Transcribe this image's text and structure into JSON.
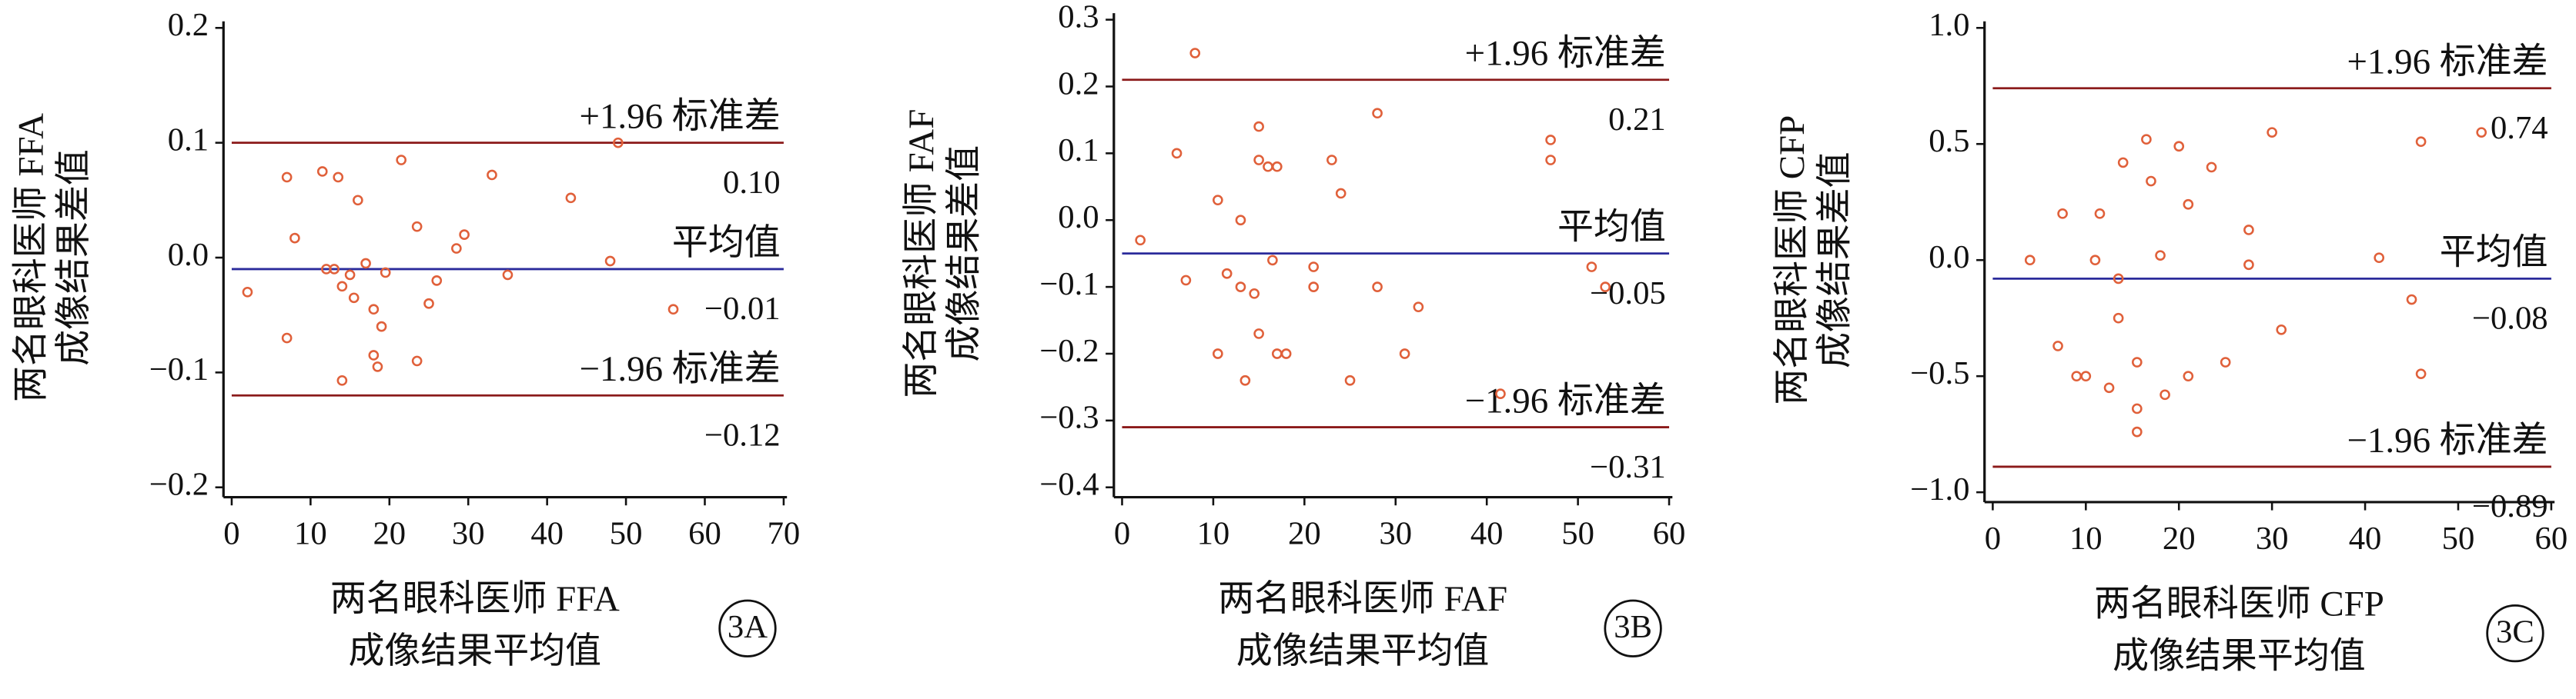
{
  "chart_data": [
    {
      "type": "scatter",
      "panel_label": "3A",
      "color": "#e0603a",
      "ylabel": [
        "两名眼科医师 FFA",
        "成像结果差值"
      ],
      "xlabel": [
        "两名眼科医师 FFA",
        "成像结果平均值"
      ],
      "xlim": [
        0,
        70
      ],
      "xticks": [
        0,
        10,
        20,
        30,
        40,
        50,
        60,
        70
      ],
      "ylim": [
        -0.2,
        0.2
      ],
      "yticks": [
        {
          "value": -0.2,
          "label": "−0.2"
        },
        {
          "value": -0.1,
          "label": "−0.1"
        },
        {
          "value": 0,
          "label": "0.0"
        },
        0.1,
        0.2
      ],
      "x": [
        2,
        7,
        7,
        8,
        11.5,
        12,
        13,
        13.5,
        14,
        14,
        15,
        15.5,
        16,
        17,
        18,
        18,
        18.5,
        19.5,
        19,
        21.5,
        23.5,
        23.5,
        25,
        26,
        28.5,
        29.5,
        33,
        35,
        43,
        48,
        49,
        56
      ],
      "values": [
        -0.03,
        0.07,
        -0.07,
        0.017,
        0.075,
        -0.01,
        -0.01,
        0.07,
        -0.025,
        -0.107,
        -0.015,
        -0.035,
        0.05,
        -0.005,
        -0.045,
        -0.085,
        -0.095,
        -0.013,
        -0.06,
        0.085,
        0.027,
        -0.09,
        -0.04,
        -0.02,
        0.008,
        0.02,
        0.072,
        -0.015,
        0.052,
        -0.003,
        0.1,
        -0.045
      ],
      "reference_lines": [
        {
          "label": "+1.96 标准差",
          "value": 0.1,
          "value_label": "0.10",
          "color": "#8b1a1a"
        },
        {
          "label": "平均值",
          "value": -0.01,
          "value_label": "−0.01",
          "color": "#2b2b9b"
        },
        {
          "label": "−1.96 标准差",
          "value": -0.12,
          "value_label": "−0.12",
          "color": "#8b1a1a"
        }
      ]
    },
    {
      "type": "scatter",
      "panel_label": "3B",
      "color": "#e0603a",
      "ylabel": [
        "两名眼科医师 FAF",
        "成像结果差值"
      ],
      "xlabel": [
        "两名眼科医师 FAF",
        "成像结果平均值"
      ],
      "xlim": [
        0,
        60
      ],
      "xticks": [
        0,
        10,
        20,
        30,
        40,
        50,
        60
      ],
      "ylim": [
        -0.4,
        0.3
      ],
      "yticks": [
        {
          "value": -0.4,
          "label": "−0.4"
        },
        {
          "value": -0.3,
          "label": "−0.3"
        },
        {
          "value": -0.2,
          "label": "−0.2"
        },
        {
          "value": -0.1,
          "label": "−0.1"
        },
        {
          "value": 0,
          "label": "0.0"
        },
        0.1,
        0.2,
        0.3
      ],
      "x": [
        2,
        6,
        7,
        8,
        10.5,
        10.5,
        11.5,
        13,
        13,
        13.5,
        14.5,
        15,
        15,
        15,
        16,
        16.5,
        17,
        18,
        17,
        21,
        21,
        23,
        24,
        25,
        28,
        28,
        31,
        32.5,
        41.5,
        47,
        47,
        51.5,
        53
      ],
      "values": [
        -0.03,
        0.1,
        -0.09,
        0.25,
        0.03,
        -0.2,
        -0.08,
        0.0,
        -0.1,
        -0.24,
        -0.11,
        -0.17,
        0.14,
        0.09,
        0.08,
        -0.06,
        -0.2,
        -0.2,
        0.08,
        -0.07,
        -0.1,
        0.09,
        0.04,
        -0.24,
        0.16,
        -0.1,
        -0.2,
        -0.13,
        -0.26,
        0.12,
        0.09,
        -0.07,
        -0.1
      ],
      "reference_lines": [
        {
          "label": "+1.96 标准差",
          "value": 0.21,
          "value_label": "0.21",
          "color": "#8b1a1a"
        },
        {
          "label": "平均值",
          "value": -0.05,
          "value_label": "−0.05",
          "color": "#2b2b9b"
        },
        {
          "label": "−1.96 标准差",
          "value": -0.31,
          "value_label": "−0.31",
          "color": "#8b1a1a"
        }
      ]
    },
    {
      "type": "scatter",
      "panel_label": "3C",
      "color": "#e0603a",
      "ylabel": [
        "两名眼科医师 CFP",
        "成像结果差值"
      ],
      "xlabel": [
        "两名眼科医师 CFP",
        "成像结果平均值"
      ],
      "xlim": [
        0,
        60
      ],
      "xticks": [
        0,
        10,
        20,
        30,
        40,
        50,
        60
      ],
      "ylim": [
        -1.0,
        1.0
      ],
      "yticks": [
        {
          "value": -1.0,
          "label": "−1.0"
        },
        {
          "value": -0.5,
          "label": "−0.5"
        },
        {
          "value": 0,
          "label": "0.0"
        },
        0.5,
        {
          "value": 1.0,
          "label": "1.0"
        }
      ],
      "x": [
        4,
        7,
        7.5,
        9,
        10,
        11,
        11.5,
        12.5,
        13.5,
        13.5,
        14,
        15.5,
        15.5,
        15.5,
        16.5,
        17,
        18,
        18.5,
        20,
        21,
        21,
        23.5,
        25,
        27.5,
        27.5,
        30,
        31,
        41.5,
        45,
        46,
        46,
        52.5
      ],
      "values": [
        0.0,
        -0.37,
        0.2,
        -0.5,
        -0.5,
        0.0,
        0.2,
        -0.55,
        -0.25,
        -0.08,
        0.42,
        -0.64,
        -0.74,
        -0.44,
        0.52,
        0.34,
        0.02,
        -0.58,
        0.49,
        0.24,
        -0.5,
        0.4,
        -0.44,
        0.13,
        -0.02,
        0.55,
        -0.3,
        0.01,
        -0.17,
        0.51,
        -0.49,
        0.55
      ],
      "reference_lines": [
        {
          "label": "+1.96 标准差",
          "value": 0.74,
          "value_label": "0.74",
          "color": "#8b1a1a"
        },
        {
          "label": "平均值",
          "value": -0.08,
          "value_label": "−0.08",
          "color": "#2b2b9b"
        },
        {
          "label": "−1.96 标准差",
          "value": -0.89,
          "value_label": "−0.89",
          "color": "#8b1a1a"
        }
      ]
    }
  ]
}
